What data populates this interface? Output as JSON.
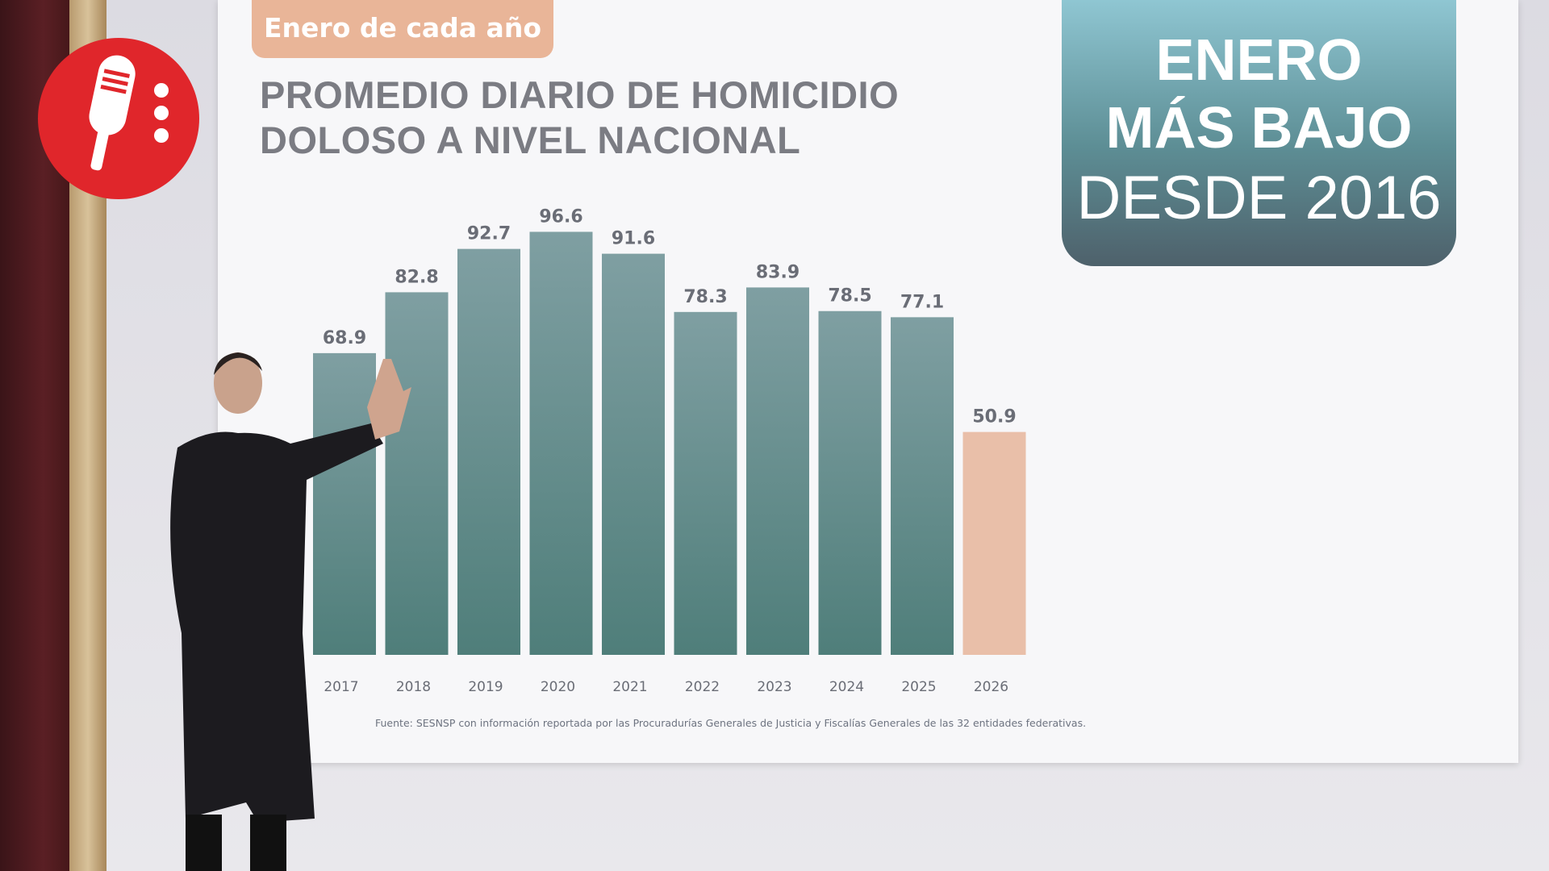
{
  "tag": "Enero de cada año",
  "title_lines": [
    "PROMEDIO DIARIO DE HOMICIDIO",
    "DOLOSO A NIVEL NACIONAL"
  ],
  "badge": {
    "line1": "ENERO",
    "line2": "MÁS BAJO",
    "line3": "DESDE 2016"
  },
  "source": "Fuente: SESNSP con información reportada por las Procuradurías Generales de Justicia y Fiscalías Generales de las 32 entidades federativas.",
  "logo_icon": "microphone-icon",
  "colors": {
    "bar": "#5f8b89",
    "highlight": "#e9bfa9",
    "badge": "#5d8e95",
    "logo": "#e0262b"
  },
  "chart_data": {
    "type": "bar",
    "title": "PROMEDIO DIARIO DE HOMICIDIO DOLOSO A NIVEL NACIONAL",
    "subtitle": "Enero de cada año",
    "categories": [
      "2017",
      "2018",
      "2019",
      "2020",
      "2021",
      "2022",
      "2023",
      "2024",
      "2025",
      "2026"
    ],
    "values": [
      68.9,
      82.8,
      92.7,
      96.6,
      91.6,
      78.3,
      83.9,
      78.5,
      77.1,
      50.9
    ],
    "labels": [
      "68.9",
      "82.8",
      "92.7",
      "96.6",
      "91.6",
      "78.3",
      "83.9",
      "78.5",
      "77.1",
      "50.9"
    ],
    "highlight": "2026",
    "ylim": [
      0,
      100
    ],
    "grid": false,
    "xlabel": "",
    "ylabel": ""
  }
}
